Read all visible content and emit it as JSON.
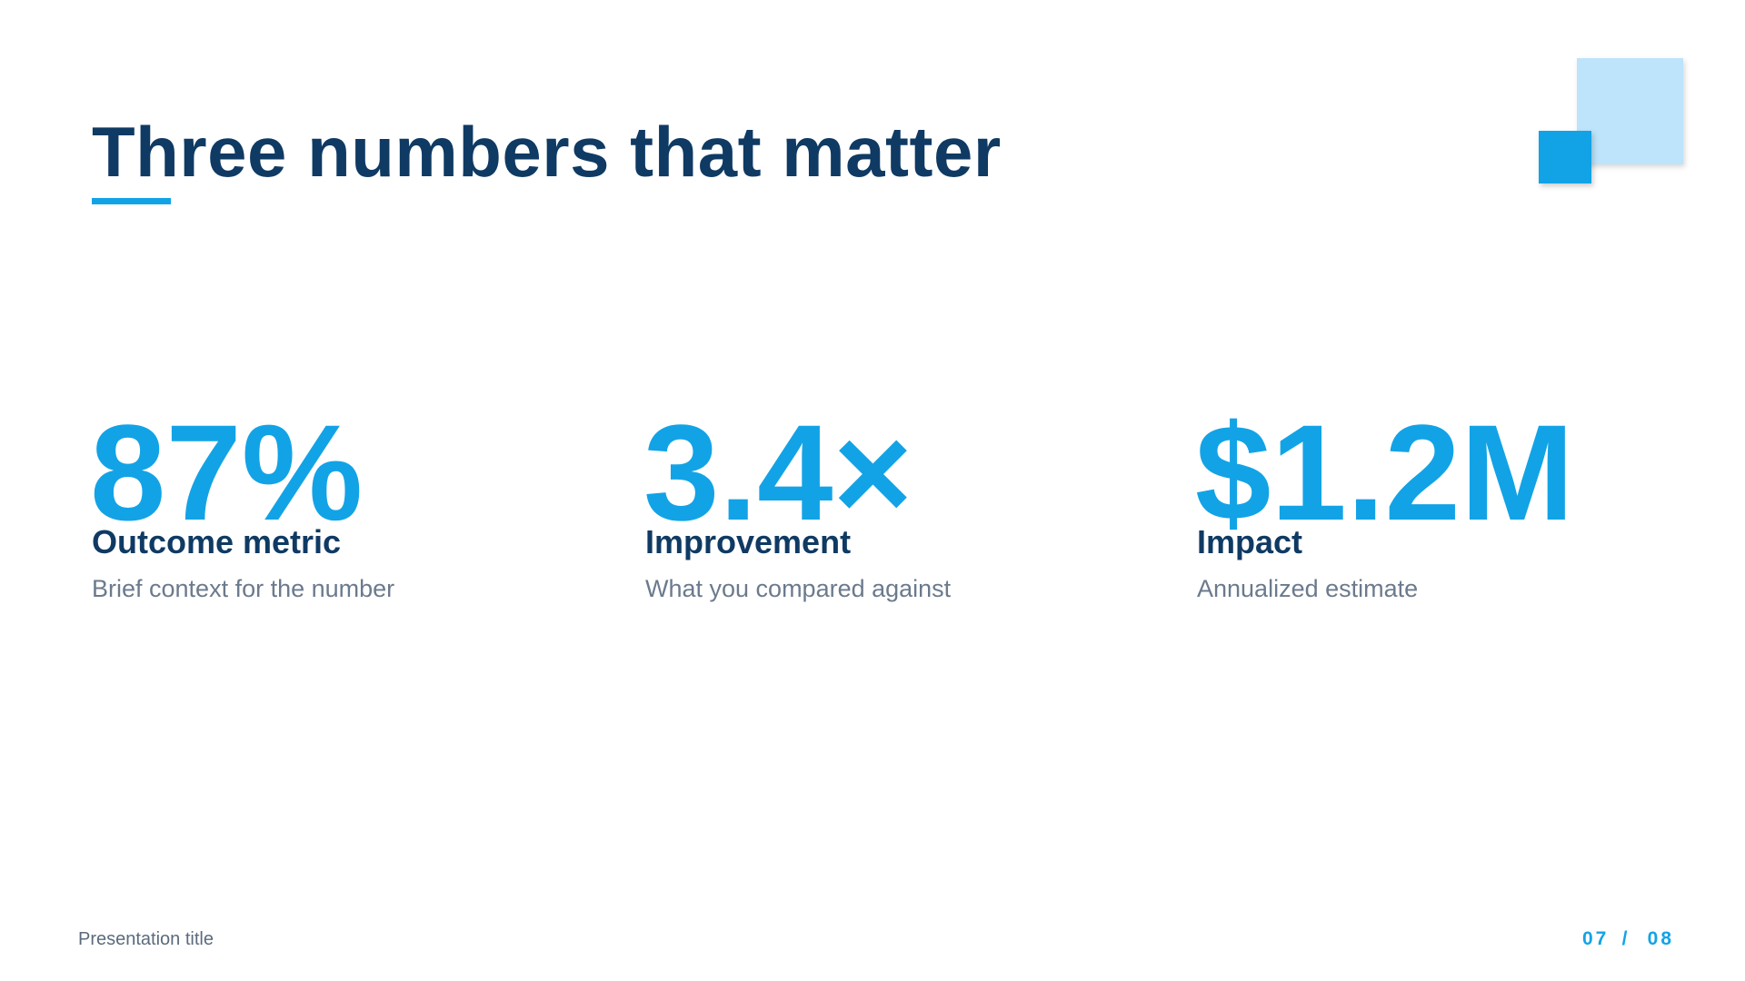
{
  "header": {
    "title": "Three numbers that matter"
  },
  "stats": [
    {
      "value": "87%",
      "label": "Outcome metric",
      "context": "Brief context for the number"
    },
    {
      "value": "3.4×",
      "label": "Improvement",
      "context": "What you compared against"
    },
    {
      "value": "$1.2M",
      "label": "Impact",
      "context": "Annualized estimate"
    }
  ],
  "footer": {
    "title": "Presentation title",
    "page": "07",
    "separator": "/",
    "total": "08"
  }
}
